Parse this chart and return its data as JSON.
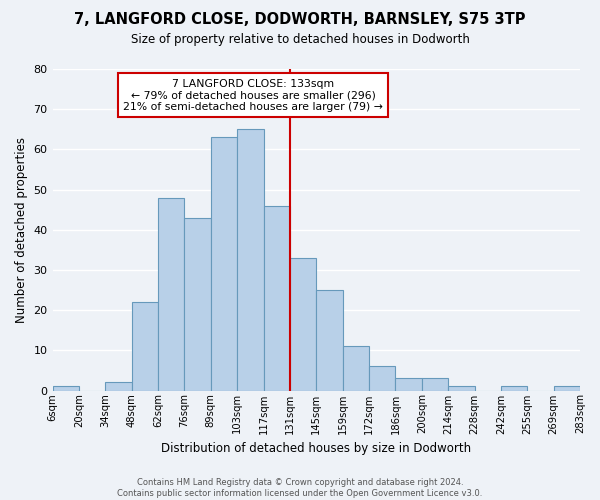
{
  "title": "7, LANGFORD CLOSE, DODWORTH, BARNSLEY, S75 3TP",
  "subtitle": "Size of property relative to detached houses in Dodworth",
  "xlabel": "Distribution of detached houses by size in Dodworth",
  "ylabel": "Number of detached properties",
  "footer_lines": [
    "Contains HM Land Registry data © Crown copyright and database right 2024.",
    "Contains public sector information licensed under the Open Government Licence v3.0."
  ],
  "bin_labels": [
    "6sqm",
    "20sqm",
    "34sqm",
    "48sqm",
    "62sqm",
    "76sqm",
    "89sqm",
    "103sqm",
    "117sqm",
    "131sqm",
    "145sqm",
    "159sqm",
    "172sqm",
    "186sqm",
    "200sqm",
    "214sqm",
    "228sqm",
    "242sqm",
    "255sqm",
    "269sqm",
    "283sqm"
  ],
  "bar_values": [
    1,
    0,
    2,
    22,
    48,
    43,
    63,
    65,
    46,
    33,
    25,
    11,
    6,
    3,
    3,
    1,
    0,
    1,
    0,
    1
  ],
  "bar_color": "#b8d0e8",
  "bar_edge_color": "#6699bb",
  "highlight_line_color": "#cc0000",
  "highlight_line_index": 9,
  "annotation_line1": "7 LANGFORD CLOSE: 133sqm",
  "annotation_line2": "← 79% of detached houses are smaller (296)",
  "annotation_line3": "21% of semi-detached houses are larger (79) →",
  "annotation_box_color": "#cc0000",
  "ylim": [
    0,
    80
  ],
  "yticks": [
    0,
    10,
    20,
    30,
    40,
    50,
    60,
    70,
    80
  ],
  "background_color": "#eef2f7",
  "grid_color": "#ffffff"
}
